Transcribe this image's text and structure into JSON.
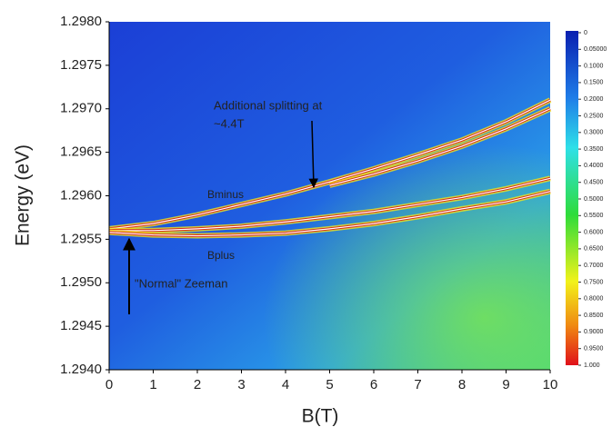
{
  "chart_data": {
    "type": "heatmap",
    "x_label": "B(T)",
    "y_label": "Energy (eV)",
    "xlim": [
      0,
      10
    ],
    "xticks": [
      0,
      1,
      2,
      3,
      4,
      5,
      6,
      7,
      8,
      9,
      10
    ],
    "ylim": [
      1.294,
      1.298
    ],
    "yticks": [
      {
        "value": 1.294,
        "label": "1.2940"
      },
      1.2945,
      {
        "value": 1.295,
        "label": "1.2950"
      },
      1.2955,
      {
        "value": 1.296,
        "label": "1.2960"
      },
      1.2965,
      {
        "value": 1.297,
        "label": "1.2970"
      },
      1.2975,
      {
        "value": 1.298,
        "label": "1.2980"
      }
    ],
    "x": [
      0,
      1,
      2,
      3,
      4,
      5,
      6,
      7,
      8,
      9,
      10
    ],
    "series": [
      {
        "name": "Bminus",
        "color": "#d62418",
        "values": [
          1.29562,
          1.29568,
          1.29578,
          1.2959,
          1.29602,
          1.29616,
          1.29631,
          1.29647,
          1.29664,
          1.29685,
          1.2971
        ]
      },
      {
        "color": "#d62418",
        "values": [
          null,
          null,
          null,
          null,
          null,
          1.29612,
          1.29625,
          1.2964,
          1.29657,
          1.29677,
          1.297
        ]
      },
      {
        "color": "#d62418",
        "values": [
          1.2956,
          1.2956,
          1.29562,
          1.29565,
          1.2957,
          1.29576,
          1.29582,
          1.2959,
          1.29598,
          1.29608,
          1.2962
        ]
      },
      {
        "name": "Bplus",
        "color": "#d62418",
        "values": [
          1.29558,
          1.29555,
          1.29554,
          1.29555,
          1.29557,
          1.29562,
          1.29568,
          1.29576,
          1.29585,
          1.29593,
          1.29605
        ]
      }
    ],
    "annotations": [
      "Additional splitting at",
      "~4.4T",
      "\"Normal\" Zeeman"
    ],
    "colorbar": {
      "clim": [
        0,
        1
      ],
      "ticks": [
        0,
        {
          "value": 0.05,
          "label": "0.05000"
        },
        {
          "value": 0.1,
          "label": "0.1000"
        },
        {
          "value": 0.15,
          "label": "0.1500"
        },
        {
          "value": 0.2,
          "label": "0.2000"
        },
        {
          "value": 0.25,
          "label": "0.2500"
        },
        {
          "value": 0.3,
          "label": "0.3000"
        },
        {
          "value": 0.35,
          "label": "0.3500"
        },
        {
          "value": 0.4,
          "label": "0.4000"
        },
        {
          "value": 0.45,
          "label": "0.4500"
        },
        {
          "value": 0.5,
          "label": "0.5000"
        },
        {
          "value": 0.55,
          "label": "0.5500"
        },
        {
          "value": 0.6,
          "label": "0.6000"
        },
        {
          "value": 0.65,
          "label": "0.6500"
        },
        {
          "value": 0.7,
          "label": "0.7000"
        },
        {
          "value": 0.75,
          "label": "0.7500"
        },
        {
          "value": 0.8,
          "label": "0.8000"
        },
        {
          "value": 0.85,
          "label": "0.8500"
        },
        {
          "value": 0.9,
          "label": "0.9000"
        },
        {
          "value": 0.95,
          "label": "0.9500"
        },
        {
          "value": 1,
          "label": "1.000"
        }
      ]
    }
  }
}
